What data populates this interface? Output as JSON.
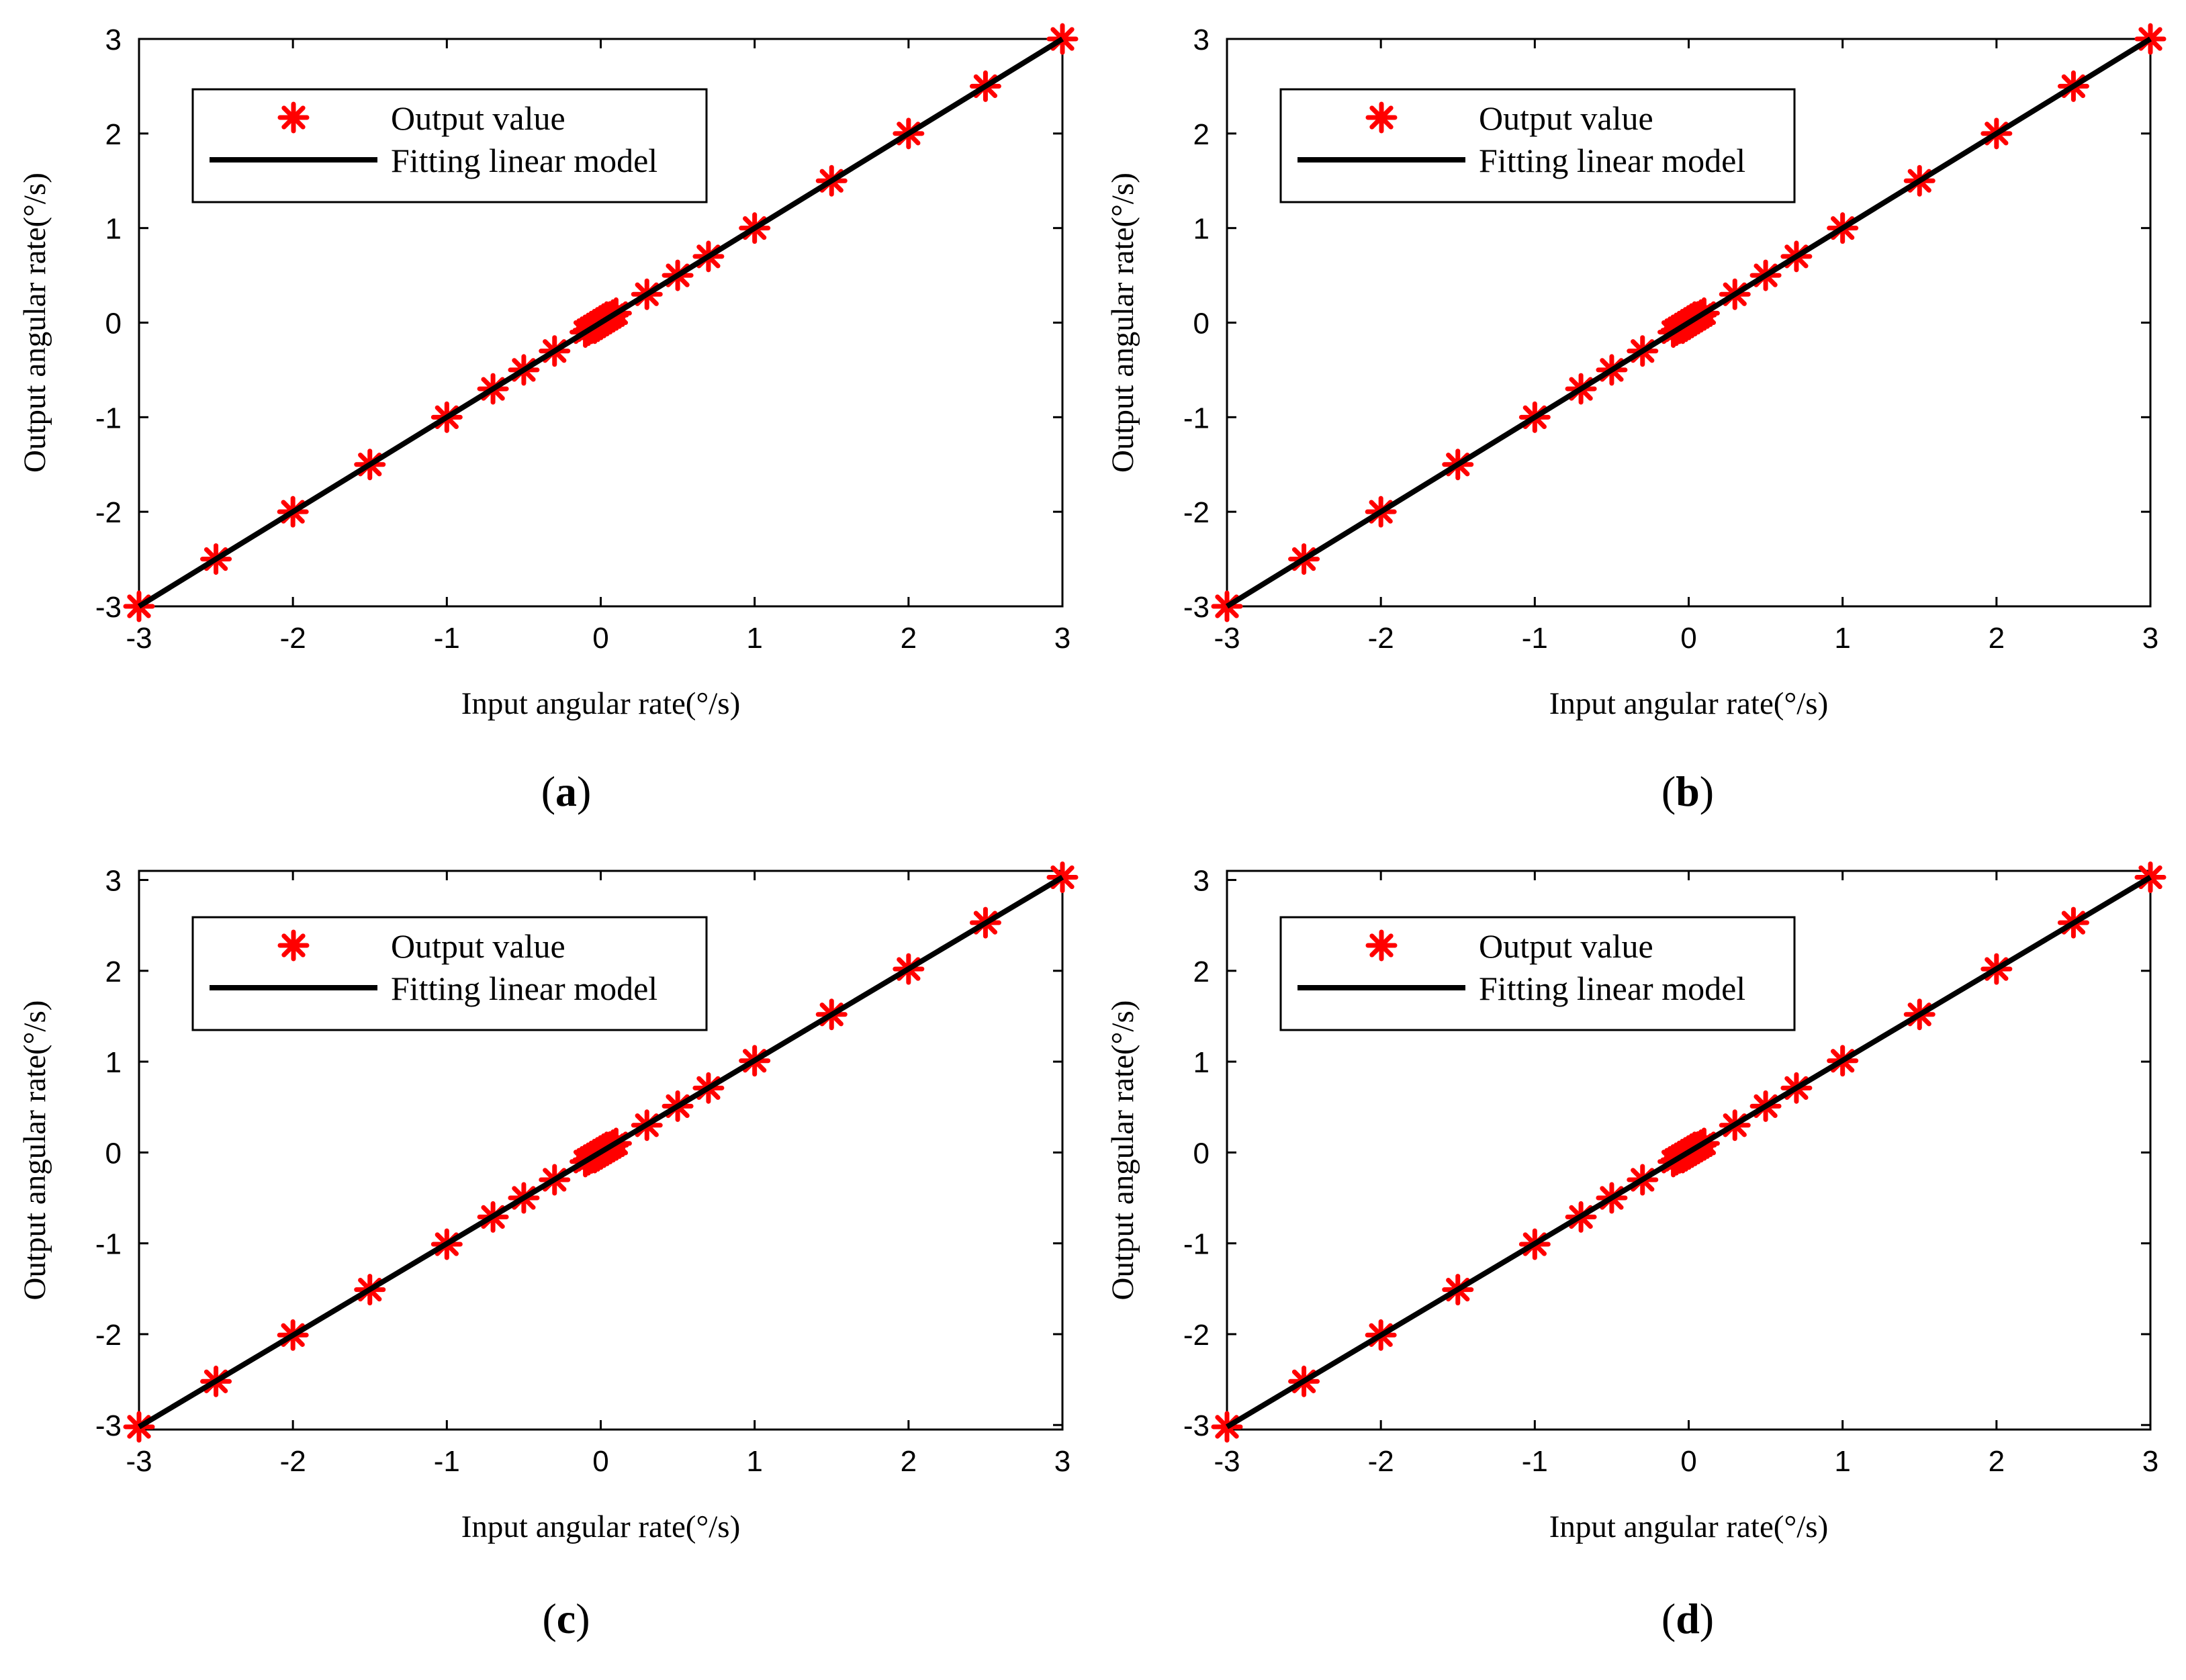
{
  "colors": {
    "marker": "#ff0000",
    "line": "#000000",
    "axis": "#000000",
    "background": "#ffffff"
  },
  "chart_data": [
    {
      "type": "scatter",
      "caption": "a",
      "xlabel": "Input angular rate(°/s)",
      "ylabel": "Output angular rate(°/s)",
      "xlim": [
        -3,
        3
      ],
      "ylim": [
        -3,
        3
      ],
      "xticks": [
        -3,
        -2,
        -1,
        0,
        1,
        2,
        3
      ],
      "yticks": [
        -3,
        -2,
        -1,
        0,
        1,
        2,
        3
      ],
      "grid": false,
      "legend_position": "top-left",
      "series": [
        {
          "name": "Output value",
          "kind": "marker",
          "marker": "asterisk",
          "x": [
            -3,
            -2.5,
            -2,
            -1.5,
            -1,
            -0.7,
            -0.5,
            -0.3,
            -0.1,
            -0.08,
            -0.06,
            -0.04,
            -0.02,
            0,
            0.02,
            0.04,
            0.06,
            0.08,
            0.1,
            0.3,
            0.5,
            0.7,
            1,
            1.5,
            2,
            2.5,
            3
          ],
          "y": [
            -3,
            -2.5,
            -2,
            -1.5,
            -1,
            -0.7,
            -0.5,
            -0.3,
            -0.1,
            -0.08,
            -0.06,
            -0.04,
            -0.02,
            0,
            0.02,
            0.04,
            0.06,
            0.08,
            0.1,
            0.3,
            0.5,
            0.7,
            1,
            1.5,
            2,
            2.5,
            3
          ]
        },
        {
          "name": "Fitting linear model",
          "kind": "line",
          "x": [
            -3,
            3
          ],
          "y": [
            -3,
            3
          ]
        }
      ]
    },
    {
      "type": "scatter",
      "caption": "b",
      "xlabel": "Input angular rate(°/s)",
      "ylabel": "Output angular rate(°/s)",
      "xlim": [
        -3,
        3
      ],
      "ylim": [
        -3,
        3
      ],
      "xticks": [
        -3,
        -2,
        -1,
        0,
        1,
        2,
        3
      ],
      "yticks": [
        -3,
        -2,
        -1,
        0,
        1,
        2,
        3
      ],
      "grid": false,
      "legend_position": "top-left",
      "series": [
        {
          "name": "Output value",
          "kind": "marker",
          "marker": "asterisk",
          "x": [
            -3,
            -2.5,
            -2,
            -1.5,
            -1,
            -0.7,
            -0.5,
            -0.3,
            -0.1,
            -0.08,
            -0.06,
            -0.04,
            -0.02,
            0,
            0.02,
            0.04,
            0.06,
            0.08,
            0.1,
            0.3,
            0.5,
            0.7,
            1,
            1.5,
            2,
            2.5,
            3
          ],
          "y": [
            -3,
            -2.5,
            -2,
            -1.5,
            -1,
            -0.7,
            -0.5,
            -0.3,
            -0.1,
            -0.08,
            -0.06,
            -0.04,
            -0.02,
            0,
            0.02,
            0.04,
            0.06,
            0.08,
            0.1,
            0.3,
            0.5,
            0.7,
            1,
            1.5,
            2,
            2.5,
            3
          ]
        },
        {
          "name": "Fitting linear model",
          "kind": "line",
          "x": [
            -3,
            3
          ],
          "y": [
            -3,
            3
          ]
        }
      ]
    },
    {
      "type": "scatter",
      "caption": "c",
      "xlabel": "Input angular rate(°/s)",
      "ylabel": "Output angular rate(°/s)",
      "xlim": [
        -3,
        3
      ],
      "ylim": [
        -3.05,
        3.1
      ],
      "xticks": [
        -3,
        -2,
        -1,
        0,
        1,
        2,
        3
      ],
      "yticks": [
        -3,
        -2,
        -1,
        0,
        1,
        2,
        3
      ],
      "grid": false,
      "legend_position": "top-left",
      "series": [
        {
          "name": "Output value",
          "kind": "marker",
          "marker": "asterisk",
          "x": [
            -3,
            -2.5,
            -2,
            -1.5,
            -1,
            -0.7,
            -0.5,
            -0.3,
            -0.1,
            -0.08,
            -0.06,
            -0.04,
            -0.02,
            0,
            0.02,
            0.04,
            0.06,
            0.08,
            0.1,
            0.3,
            0.5,
            0.7,
            1,
            1.5,
            2,
            2.5,
            3
          ],
          "y": [
            -3.02,
            -2.52,
            -2.01,
            -1.51,
            -1.01,
            -0.71,
            -0.5,
            -0.3,
            -0.1,
            -0.08,
            -0.06,
            -0.04,
            -0.02,
            0,
            0.02,
            0.04,
            0.06,
            0.08,
            0.1,
            0.3,
            0.51,
            0.71,
            1.01,
            1.52,
            2.02,
            2.53,
            3.03
          ]
        },
        {
          "name": "Fitting linear model",
          "kind": "line",
          "x": [
            -3,
            3
          ],
          "y": [
            -3.02,
            3.03
          ]
        }
      ]
    },
    {
      "type": "scatter",
      "caption": "d",
      "xlabel": "Input angular rate(°/s)",
      "ylabel": "Output angular rate(°/s)",
      "xlim": [
        -3,
        3
      ],
      "ylim": [
        -3.05,
        3.1
      ],
      "xticks": [
        -3,
        -2,
        -1,
        0,
        1,
        2,
        3
      ],
      "yticks": [
        -3,
        -2,
        -1,
        0,
        1,
        2,
        3
      ],
      "grid": false,
      "legend_position": "top-left",
      "series": [
        {
          "name": "Output value",
          "kind": "marker",
          "marker": "asterisk",
          "x": [
            -3,
            -2.5,
            -2,
            -1.5,
            -1,
            -0.7,
            -0.5,
            -0.3,
            -0.1,
            -0.08,
            -0.06,
            -0.04,
            -0.02,
            0,
            0.02,
            0.04,
            0.06,
            0.08,
            0.1,
            0.3,
            0.5,
            0.7,
            1,
            1.5,
            2,
            2.5,
            3
          ],
          "y": [
            -3.02,
            -2.52,
            -2.01,
            -1.51,
            -1.01,
            -0.71,
            -0.5,
            -0.3,
            -0.1,
            -0.08,
            -0.06,
            -0.04,
            -0.02,
            0,
            0.02,
            0.04,
            0.06,
            0.08,
            0.1,
            0.3,
            0.51,
            0.71,
            1.01,
            1.52,
            2.02,
            2.53,
            3.03
          ]
        },
        {
          "name": "Fitting linear model",
          "kind": "line",
          "x": [
            -3,
            3
          ],
          "y": [
            -3.02,
            3.03
          ]
        }
      ]
    }
  ]
}
